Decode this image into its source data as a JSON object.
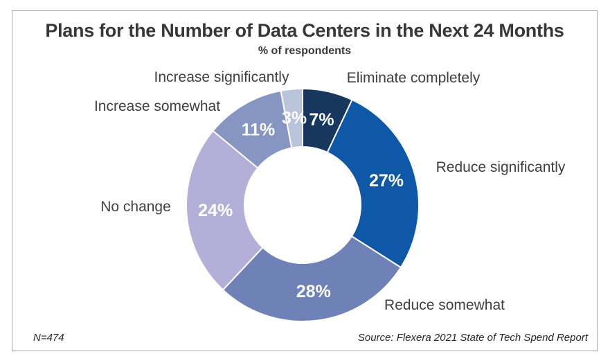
{
  "header": {
    "title": "Plans for the Number of Data Centers in the Next 24 Months",
    "subtitle": "% of respondents"
  },
  "footer": {
    "sample_size": "N=474",
    "source": "Source: Flexera 2021 State of Tech Spend Report"
  },
  "chart_data": {
    "type": "pie",
    "variant": "donut",
    "title": "Plans for the Number of Data Centers in the Next 24 Months",
    "subtitle": "% of respondents",
    "unit": "%",
    "start_angle_deg": 0,
    "direction": "clockwise",
    "inner_radius_ratio": 0.5,
    "legend_position": "outside-labels",
    "slices": [
      {
        "label": "Eliminate completely",
        "value": 7,
        "color": "#17375E"
      },
      {
        "label": "Reduce significantly",
        "value": 27,
        "color": "#0E58A7"
      },
      {
        "label": "Reduce somewhat",
        "value": 28,
        "color": "#6F82B8"
      },
      {
        "label": "No change",
        "value": 24,
        "color": "#B3AFD8"
      },
      {
        "label": "Increase somewhat",
        "value": 11,
        "color": "#8695C1"
      },
      {
        "label": "Increase significantly",
        "value": 3,
        "color": "#B9C3D9"
      }
    ],
    "value_label_color": "#FFFFFF",
    "category_label_color": "#3F3F3F",
    "separator_color": "#FFFFFF"
  }
}
